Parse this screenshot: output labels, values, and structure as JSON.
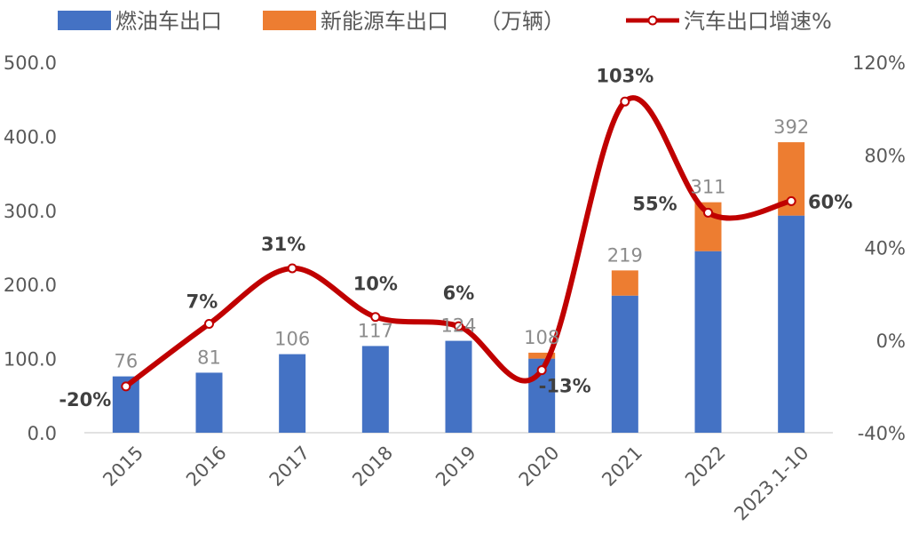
{
  "chart_data": {
    "type": "bar",
    "stacked": true,
    "categories": [
      "2015",
      "2016",
      "2017",
      "2018",
      "2019",
      "2020",
      "2021",
      "2022",
      "2023.1-10"
    ],
    "series": [
      {
        "name": "燃油车出口",
        "color": "#4472c4",
        "values": [
          76,
          81,
          106,
          117,
          124,
          100,
          185,
          245,
          293
        ]
      },
      {
        "name": "新能源车出口",
        "color": "#ed7d31",
        "values": [
          0,
          0,
          0,
          0,
          0,
          8,
          34,
          66,
          99
        ]
      }
    ],
    "totals": [
      76,
      81,
      106,
      117,
      124,
      108,
      219,
      311,
      392
    ],
    "unit_note": "（万辆）",
    "line_series": {
      "name": "汽车出口增速%",
      "color": "#c00000",
      "axis": "right",
      "values": [
        -20,
        7,
        31,
        10,
        6,
        -13,
        103,
        55,
        60
      ],
      "labels": [
        "-20%",
        "7%",
        "31%",
        "10%",
        "6%",
        "-13%",
        "103%",
        "55%",
        "60%"
      ]
    },
    "y_left": {
      "min": 0,
      "max": 500,
      "step": 100,
      "tick_labels": [
        "0.0",
        "100.0",
        "200.0",
        "300.0",
        "400.0",
        "500.0"
      ]
    },
    "y_right": {
      "min": -40,
      "max": 120,
      "step": 40,
      "tick_labels": [
        "-40%",
        "0%",
        "40%",
        "80%",
        "120%"
      ]
    },
    "legend_position": "top",
    "grid": false
  }
}
